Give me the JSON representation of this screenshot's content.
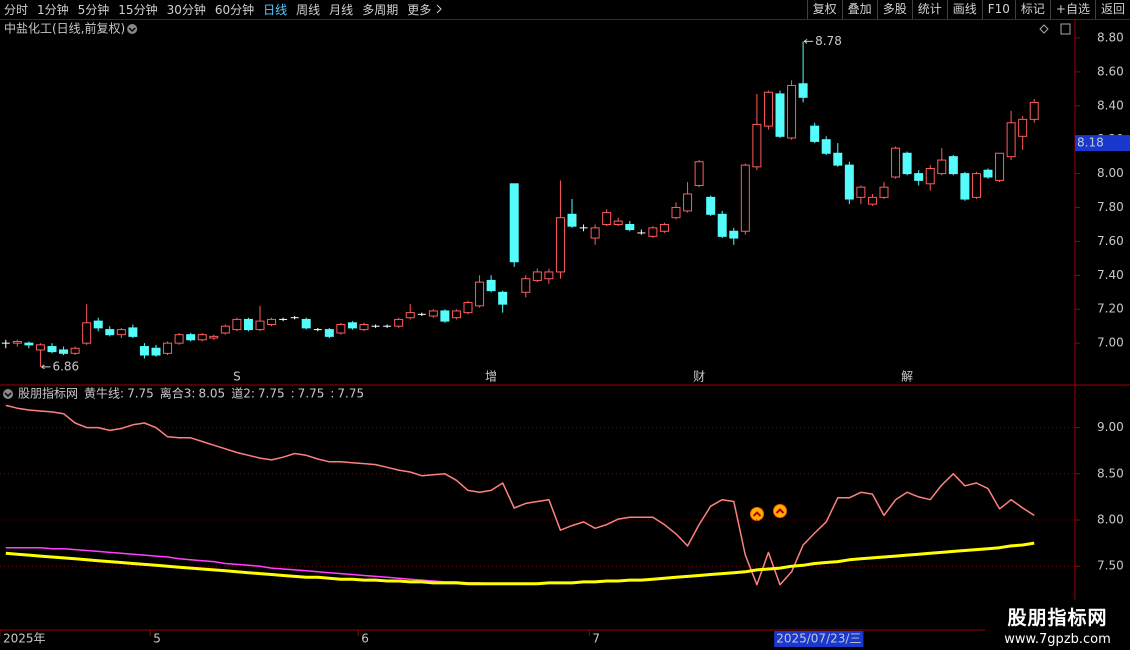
{
  "toolbar": {
    "periods": [
      "分时",
      "1分钟",
      "5分钟",
      "15分钟",
      "30分钟",
      "60分钟",
      "日线",
      "周线",
      "月线",
      "多周期",
      "更多"
    ],
    "active_period": 6,
    "buttons": [
      "复权",
      "叠加",
      "多股",
      "统计",
      "画线",
      "F10",
      "标记",
      "+自选",
      "返回"
    ]
  },
  "chart_data": [
    {
      "type": "candlestick",
      "title": "中盐化工(日线,前复权)",
      "open": [
        7.0,
        7.0,
        7.0,
        6.96,
        6.98,
        6.96,
        6.94,
        7.0,
        7.13,
        7.08,
        7.05,
        7.09,
        6.98,
        6.97,
        6.94,
        7.0,
        7.05,
        7.02,
        7.03,
        7.06,
        7.08,
        7.14,
        7.08,
        7.11,
        7.14,
        7.15,
        7.14,
        7.08,
        7.08,
        7.06,
        7.12,
        7.08,
        7.1,
        7.1,
        7.1,
        7.15,
        7.17,
        7.16,
        7.19,
        7.15,
        7.18,
        7.22,
        7.37,
        7.3,
        7.94,
        7.3,
        7.37,
        7.38,
        7.42,
        7.76,
        7.68,
        7.62,
        7.7,
        7.7,
        7.7,
        7.65,
        7.63,
        7.66,
        7.74,
        7.78,
        7.93,
        7.86,
        7.76,
        7.66,
        7.66,
        8.04,
        8.28,
        8.47,
        8.21,
        8.53,
        8.28,
        8.2,
        8.12,
        8.05,
        7.86,
        7.82,
        7.86,
        7.98,
        8.12,
        8.0,
        7.94,
        8.0,
        8.1,
        8.0,
        7.86,
        8.02,
        7.96,
        8.1,
        8.22,
        8.32
      ],
      "high": [
        7.02,
        7.02,
        7.01,
        7.0,
        7.0,
        6.98,
        6.98,
        7.23,
        7.15,
        7.1,
        7.09,
        7.11,
        7.0,
        6.99,
        7.01,
        7.06,
        7.06,
        7.06,
        7.05,
        7.11,
        7.15,
        7.15,
        7.22,
        7.15,
        7.15,
        7.16,
        7.15,
        7.09,
        7.09,
        7.12,
        7.13,
        7.12,
        7.11,
        7.11,
        7.15,
        7.23,
        7.18,
        7.2,
        7.2,
        7.2,
        7.25,
        7.4,
        7.4,
        7.31,
        7.94,
        7.4,
        7.44,
        7.44,
        7.96,
        7.85,
        7.7,
        7.7,
        7.79,
        7.74,
        7.72,
        7.67,
        7.69,
        7.71,
        7.83,
        7.95,
        8.08,
        7.87,
        7.78,
        7.68,
        8.06,
        8.47,
        8.49,
        8.49,
        8.55,
        8.78,
        8.3,
        8.22,
        8.18,
        8.07,
        7.93,
        7.88,
        7.95,
        8.16,
        8.13,
        8.02,
        8.05,
        8.15,
        8.11,
        8.01,
        8.01,
        8.03,
        8.12,
        8.37,
        8.34,
        8.44
      ],
      "low": [
        6.97,
        6.98,
        6.97,
        6.86,
        6.94,
        6.93,
        6.93,
        6.99,
        7.07,
        7.04,
        7.03,
        7.03,
        6.91,
        6.92,
        6.93,
        6.99,
        7.01,
        7.01,
        7.02,
        7.05,
        7.07,
        7.07,
        7.07,
        7.1,
        7.13,
        7.14,
        7.08,
        7.07,
        7.03,
        7.05,
        7.08,
        7.07,
        7.09,
        7.09,
        7.09,
        7.14,
        7.16,
        7.15,
        7.12,
        7.14,
        7.17,
        7.21,
        7.3,
        7.18,
        7.45,
        7.27,
        7.36,
        7.35,
        7.38,
        7.68,
        7.66,
        7.58,
        7.69,
        7.69,
        7.66,
        7.64,
        7.62,
        7.65,
        7.73,
        7.77,
        7.92,
        7.75,
        7.62,
        7.58,
        7.64,
        8.02,
        8.26,
        8.21,
        8.2,
        8.42,
        8.18,
        8.11,
        8.04,
        7.82,
        7.82,
        7.81,
        7.85,
        7.97,
        7.99,
        7.93,
        7.9,
        7.99,
        7.99,
        7.84,
        7.85,
        7.97,
        7.95,
        8.08,
        8.14,
        8.3
      ],
      "close": [
        7.0,
        7.01,
        6.99,
        6.99,
        6.95,
        6.94,
        6.97,
        7.12,
        7.09,
        7.05,
        7.08,
        7.04,
        6.93,
        6.93,
        7.0,
        7.05,
        7.02,
        7.05,
        7.04,
        7.1,
        7.14,
        7.08,
        7.13,
        7.14,
        7.14,
        7.15,
        7.09,
        7.08,
        7.04,
        7.11,
        7.09,
        7.11,
        7.1,
        7.1,
        7.14,
        7.18,
        7.17,
        7.19,
        7.13,
        7.19,
        7.24,
        7.36,
        7.31,
        7.23,
        7.48,
        7.38,
        7.42,
        7.42,
        7.74,
        7.69,
        7.68,
        7.68,
        7.77,
        7.72,
        7.67,
        7.65,
        7.68,
        7.7,
        7.8,
        7.88,
        8.07,
        7.76,
        7.63,
        7.62,
        8.05,
        8.29,
        8.48,
        8.22,
        8.52,
        8.45,
        8.19,
        8.12,
        8.05,
        7.85,
        7.92,
        7.86,
        7.92,
        8.15,
        8.0,
        7.96,
        8.03,
        8.08,
        8.0,
        7.85,
        8.0,
        7.98,
        8.12,
        8.3,
        8.32,
        8.42
      ],
      "up_color": "#ff5c5c",
      "down_color": "#54fcfc",
      "flat_color": "#ffffff",
      "ylim": [
        6.765,
        8.906
      ],
      "yticks": [
        {
          "value": 8.8,
          "label": "8.80"
        },
        {
          "value": 8.6,
          "label": "8.60"
        },
        {
          "value": 8.4,
          "label": "8.40"
        },
        {
          "value": 8.2,
          "label": "8.20"
        },
        {
          "value": 8.0,
          "label": "8.00"
        },
        {
          "value": 7.8,
          "label": "7.80"
        },
        {
          "value": 7.6,
          "label": "7.60"
        },
        {
          "value": 7.4,
          "label": "7.40"
        },
        {
          "value": 7.2,
          "label": "7.20"
        },
        {
          "value": 7.0,
          "label": "7.00"
        }
      ],
      "grid": false,
      "cursor_price": 8.18,
      "events": [
        {
          "index": 20,
          "label": "S",
          "color": "#ff3030"
        },
        {
          "index": 42,
          "label": "增",
          "color": "#ffffff"
        },
        {
          "index": 60,
          "label": "财",
          "color": "#8fd0ff"
        },
        {
          "index": 78,
          "label": "解",
          "color": "#ffffff"
        }
      ]
    },
    {
      "type": "line",
      "title": "股朋指标网",
      "readout": [
        {
          "label": "黄牛线:",
          "value": 7.75,
          "color": "#ffff00"
        },
        {
          "label": "离合3:",
          "value": 8.05,
          "color": "#ffffff"
        },
        {
          "label": "道2:",
          "value": 7.75,
          "color": "#ff40ff"
        },
        {
          "label": ":",
          "value": 7.75,
          "color": "#ff8080"
        },
        {
          "label": ":",
          "value": 7.75,
          "color": "#ffffff"
        }
      ],
      "series": [
        {
          "color": "#ff40ff",
          "width": 1.5,
          "values": [
            7.7,
            7.7,
            7.7,
            7.7,
            7.69,
            7.69,
            7.68,
            7.67,
            7.66,
            7.65,
            7.64,
            7.63,
            7.62,
            7.61,
            7.6,
            7.58,
            7.57,
            7.56,
            7.55,
            7.53,
            7.52,
            7.51,
            7.5,
            7.48,
            7.47,
            7.46,
            7.45,
            7.44,
            7.43,
            7.42,
            7.41,
            7.4,
            7.39,
            7.38,
            7.37,
            7.36,
            7.35,
            7.34,
            7.33,
            7.33,
            7.32,
            7.32,
            7.31,
            7.31,
            7.31,
            null,
            null,
            null,
            null,
            null,
            null,
            null,
            null,
            null,
            null,
            null,
            null,
            null,
            null,
            null,
            null,
            null,
            null,
            null,
            null,
            null,
            null,
            null,
            null,
            null,
            null,
            null,
            null,
            null,
            null,
            null,
            null,
            null,
            null,
            null,
            null,
            null,
            null,
            null,
            null,
            null,
            null,
            null,
            null,
            null
          ]
        },
        {
          "color": "#ff8080",
          "width": 1.5,
          "values": [
            9.24,
            9.21,
            9.19,
            9.18,
            9.17,
            9.15,
            9.05,
            9.0,
            9.0,
            8.97,
            8.99,
            9.03,
            9.05,
            9.0,
            8.9,
            8.89,
            8.89,
            8.85,
            8.81,
            8.77,
            8.73,
            8.7,
            8.67,
            8.65,
            8.68,
            8.72,
            8.7,
            8.66,
            8.63,
            8.63,
            8.62,
            8.61,
            8.6,
            8.57,
            8.54,
            8.52,
            8.48,
            8.49,
            8.5,
            8.43,
            8.32,
            8.3,
            8.32,
            8.4,
            8.13,
            8.18,
            8.2,
            8.22,
            7.89,
            7.94,
            7.98,
            7.91,
            7.95,
            8.01,
            8.03,
            8.03,
            8.03,
            7.95,
            7.85,
            7.72,
            7.95,
            8.15,
            8.22,
            8.2,
            7.62,
            7.3,
            7.65,
            7.3,
            7.44,
            7.73,
            7.86,
            7.98,
            8.24,
            8.24,
            8.3,
            8.28,
            8.05,
            8.22,
            8.3,
            8.25,
            8.22,
            8.38,
            8.5,
            8.37,
            8.4,
            8.34,
            8.12,
            8.22,
            8.13,
            8.05
          ]
        },
        {
          "color": "#ffff00",
          "width": 3,
          "values": [
            7.64,
            7.63,
            7.62,
            7.61,
            7.6,
            7.59,
            7.58,
            7.57,
            7.56,
            7.55,
            7.54,
            7.53,
            7.52,
            7.51,
            7.5,
            7.49,
            7.48,
            7.47,
            7.46,
            7.45,
            7.44,
            7.43,
            7.42,
            7.41,
            7.4,
            7.39,
            7.38,
            7.38,
            7.37,
            7.36,
            7.36,
            7.35,
            7.35,
            7.34,
            7.34,
            7.33,
            7.33,
            7.32,
            7.32,
            7.32,
            7.31,
            7.31,
            7.31,
            7.31,
            7.31,
            7.31,
            7.31,
            7.32,
            7.32,
            7.32,
            7.33,
            7.33,
            7.34,
            7.34,
            7.35,
            7.35,
            7.36,
            7.37,
            7.38,
            7.39,
            7.4,
            7.41,
            7.42,
            7.43,
            7.44,
            7.46,
            7.47,
            7.48,
            7.5,
            7.51,
            7.53,
            7.54,
            7.55,
            7.57,
            7.58,
            7.59,
            7.6,
            7.61,
            7.62,
            7.63,
            7.64,
            7.65,
            7.66,
            7.67,
            7.68,
            7.69,
            7.7,
            7.72,
            7.73,
            7.75
          ]
        }
      ],
      "categories": [
        "2025年",
        null,
        null,
        null,
        null,
        null,
        null,
        null,
        null,
        null,
        null,
        null,
        null,
        "5",
        null,
        null,
        null,
        null,
        null,
        null,
        null,
        null,
        null,
        null,
        null,
        null,
        null,
        null,
        null,
        null,
        null,
        "6",
        null,
        null,
        null,
        null,
        null,
        null,
        null,
        null,
        null,
        null,
        null,
        null,
        null,
        null,
        null,
        null,
        null,
        null,
        null,
        "7",
        null,
        null,
        null,
        null,
        null,
        null,
        null,
        null,
        null,
        null,
        null,
        null,
        null,
        null,
        null,
        "2025/07/23/三",
        null,
        null,
        null,
        null,
        null,
        null,
        null,
        null,
        null,
        null,
        null,
        null,
        null,
        null,
        null,
        null,
        null,
        null,
        null,
        null,
        null,
        null
      ],
      "cursor_index": 67,
      "ylim": [
        6.81,
        9.45
      ],
      "yticks": [
        {
          "value": 9.0,
          "label": "9.00"
        },
        {
          "value": 8.5,
          "label": "8.50"
        },
        {
          "value": 8.0,
          "label": "8.00"
        },
        {
          "value": 7.5,
          "label": "7.50"
        }
      ],
      "grid": true
    }
  ],
  "watermark": {
    "title": "股朋指标网",
    "url": "www.7gpzb.com"
  }
}
